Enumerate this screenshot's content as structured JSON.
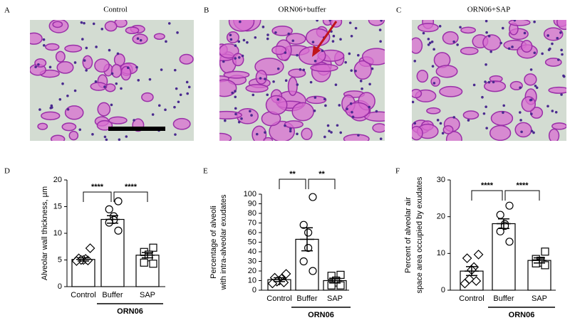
{
  "images": [
    {
      "letter": "A",
      "title": "Control"
    },
    {
      "letter": "B",
      "title": "ORN06+buffer"
    },
    {
      "letter": "C",
      "title": "ORN06+SAP"
    }
  ],
  "chart_data": [
    {
      "type": "bar",
      "label": "D",
      "y_label": [
        "Alveolar wall thickness, µm"
      ],
      "categories": [
        "Control",
        "Buffer",
        "SAP"
      ],
      "values": [
        5.1,
        12.6,
        5.9
      ],
      "errors": [
        0.3,
        0.7,
        0.5
      ],
      "points": [
        [
          7.2,
          5.3,
          5.2,
          5.0,
          5.0,
          4.9,
          4.8
        ],
        [
          16.0,
          14.5,
          13.2,
          12.5,
          12.0,
          10.5
        ],
        [
          7.3,
          6.5,
          6.0,
          5.5,
          4.5,
          4.3
        ]
      ],
      "markers": [
        "diamond",
        "circle",
        "square"
      ],
      "color": "#000000",
      "ylim": [
        0,
        20
      ],
      "yticks": [
        0,
        5,
        10,
        15,
        20
      ],
      "significance": [
        "****",
        "****"
      ],
      "group_label": "ORN06"
    },
    {
      "type": "bar",
      "label": "E",
      "y_label": [
        "Percentage of alveoli",
        "with intra-alveolar exudates"
      ],
      "categories": [
        "Control",
        "Buffer",
        "SAP"
      ],
      "values": [
        11,
        53,
        10
      ],
      "errors": [
        2,
        12,
        2.5
      ],
      "points": [
        [
          17,
          13,
          12,
          10,
          9,
          8,
          7
        ],
        [
          97,
          68,
          60,
          44,
          30,
          20
        ],
        [
          16,
          15,
          10,
          8,
          5,
          5
        ]
      ],
      "markers": [
        "diamond",
        "circle",
        "square"
      ],
      "color": "#000000",
      "ylim": [
        0,
        100
      ],
      "yticks": [
        0,
        10,
        20,
        30,
        40,
        50,
        60,
        70,
        80,
        90,
        100
      ],
      "significance": [
        "**",
        "**"
      ],
      "group_label": "ORN06"
    },
    {
      "type": "bar",
      "label": "F",
      "y_label": [
        "Percent of alveolar air",
        "space area occupied by exudates"
      ],
      "categories": [
        "Control",
        "Buffer",
        "SAP"
      ],
      "values": [
        5.2,
        18.1,
        8.1
      ],
      "errors": [
        1.2,
        1.3,
        0.7
      ],
      "points": [
        [
          9.7,
          8.7,
          6.3,
          5.5,
          3.0,
          2.5,
          1.8
        ],
        [
          23,
          20.5,
          18,
          17.5,
          16,
          13.2
        ],
        [
          10.5,
          8.5,
          8.0,
          7.5,
          7.3,
          6.8
        ]
      ],
      "markers": [
        "diamond",
        "circle",
        "square"
      ],
      "color": "#000000",
      "ylim": [
        0,
        30
      ],
      "yticks": [
        0,
        10,
        20,
        30
      ],
      "significance": [
        "****",
        "****"
      ],
      "group_label": "ORN06"
    }
  ]
}
